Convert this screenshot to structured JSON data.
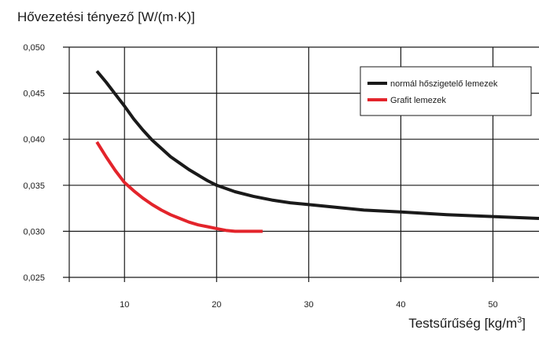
{
  "chart_data": {
    "type": "line",
    "title": "Hővezetési tényező [W/(m·K)]",
    "xlabel": "Testsűrűség [kg/m",
    "xlabel_sup": "3",
    "xlabel_end": "]",
    "xlim": [
      4,
      55
    ],
    "ylim": [
      0.025,
      0.05
    ],
    "xticks": [
      10,
      20,
      30,
      40,
      50
    ],
    "xtick_labels": [
      "10",
      "20",
      "30",
      "40",
      "50"
    ],
    "yticks": [
      0.025,
      0.03,
      0.035,
      0.04,
      0.045,
      0.05
    ],
    "ytick_labels": [
      "0,025",
      "0,030",
      "0,035",
      "0,040",
      "0,045",
      "0,050"
    ],
    "grid": true,
    "legend_position": "top-right",
    "series": [
      {
        "name": "normál hőszigetelő lemezek",
        "color": "#1a1a1a",
        "x": [
          7,
          8,
          9,
          10,
          11,
          12,
          13,
          14,
          15,
          16,
          17,
          18,
          19,
          20,
          22,
          24,
          26,
          28,
          30,
          33,
          36,
          40,
          45,
          50,
          55
        ],
        "y": [
          0.0474,
          0.0462,
          0.0449,
          0.0436,
          0.0422,
          0.041,
          0.0399,
          0.039,
          0.0381,
          0.0374,
          0.0367,
          0.0361,
          0.0355,
          0.035,
          0.0343,
          0.0338,
          0.0334,
          0.0331,
          0.0329,
          0.0326,
          0.0323,
          0.0321,
          0.0318,
          0.0316,
          0.0314
        ]
      },
      {
        "name": "Grafit lemezek",
        "color": "#e3242b",
        "x": [
          7,
          8,
          9,
          10,
          11,
          12,
          13,
          14,
          15,
          16,
          17,
          18,
          19,
          20,
          21,
          22,
          23,
          24,
          25
        ],
        "y": [
          0.0397,
          0.0381,
          0.0366,
          0.0353,
          0.0344,
          0.0336,
          0.0329,
          0.0323,
          0.0318,
          0.0314,
          0.031,
          0.0307,
          0.0305,
          0.0303,
          0.0301,
          0.03,
          0.03,
          0.03,
          0.03
        ]
      }
    ]
  }
}
